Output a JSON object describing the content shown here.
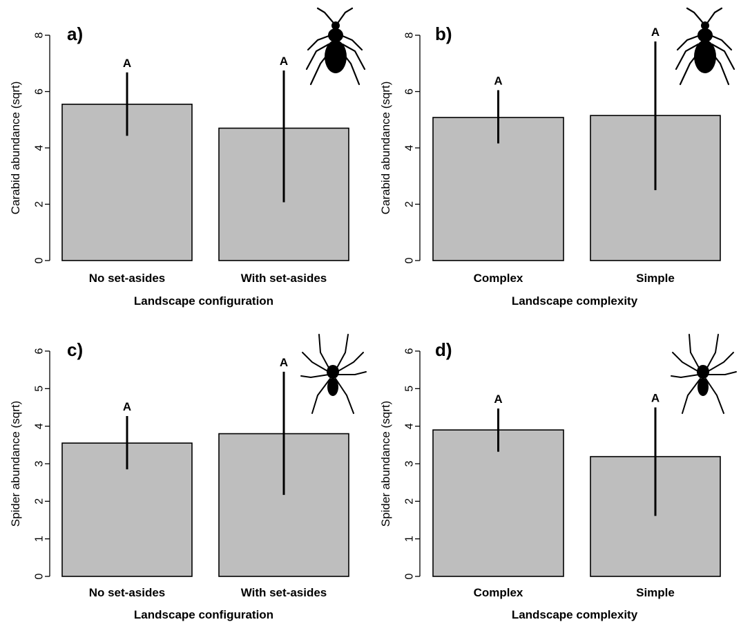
{
  "figure": {
    "colors": {
      "bar_fill": "#bebebe",
      "bar_stroke": "#000000",
      "error_bar": "#000000",
      "silhouette": "#000000"
    }
  },
  "chart_data": [
    {
      "type": "bar",
      "panel_label": "a)",
      "categories": [
        "No set-asides",
        "With set-asides"
      ],
      "values": [
        5.55,
        4.7
      ],
      "error_low": [
        4.43,
        2.07
      ],
      "error_high": [
        6.68,
        6.75
      ],
      "significance_letters": [
        "A",
        "A"
      ],
      "xlabel": "Landscape configuration",
      "ylabel": "Carabid abundance (sqrt)",
      "ylim": [
        0,
        8
      ],
      "yticks": [
        0,
        2,
        4,
        6,
        8
      ],
      "icon": "beetle-icon"
    },
    {
      "type": "bar",
      "panel_label": "b)",
      "categories": [
        "Complex",
        "Simple"
      ],
      "values": [
        5.08,
        5.15
      ],
      "error_low": [
        4.16,
        2.5
      ],
      "error_high": [
        6.05,
        7.78
      ],
      "significance_letters": [
        "A",
        "A"
      ],
      "xlabel": "Landscape complexity",
      "ylabel": "Carabid abundance (sqrt)",
      "ylim": [
        0,
        8
      ],
      "yticks": [
        0,
        2,
        4,
        6,
        8
      ],
      "icon": "beetle-icon"
    },
    {
      "type": "bar",
      "panel_label": "c)",
      "categories": [
        "No set-asides",
        "With set-asides"
      ],
      "values": [
        3.55,
        3.8
      ],
      "error_low": [
        2.85,
        2.17
      ],
      "error_high": [
        4.27,
        5.45
      ],
      "significance_letters": [
        "A",
        "A"
      ],
      "xlabel": "Landscape configuration",
      "ylabel": "Spider abundance (sqrt)",
      "ylim": [
        0,
        6
      ],
      "yticks": [
        0,
        1,
        2,
        3,
        4,
        5,
        6
      ],
      "icon": "spider-icon"
    },
    {
      "type": "bar",
      "panel_label": "d)",
      "categories": [
        "Complex",
        "Simple"
      ],
      "values": [
        3.9,
        3.19
      ],
      "error_low": [
        3.32,
        1.61
      ],
      "error_high": [
        4.47,
        4.5
      ],
      "significance_letters": [
        "A",
        "A"
      ],
      "xlabel": "Landscape complexity",
      "ylabel": "Spider abundance (sqrt)",
      "ylim": [
        0,
        6
      ],
      "yticks": [
        0,
        1,
        2,
        3,
        4,
        5,
        6
      ],
      "icon": "spider-icon"
    }
  ]
}
